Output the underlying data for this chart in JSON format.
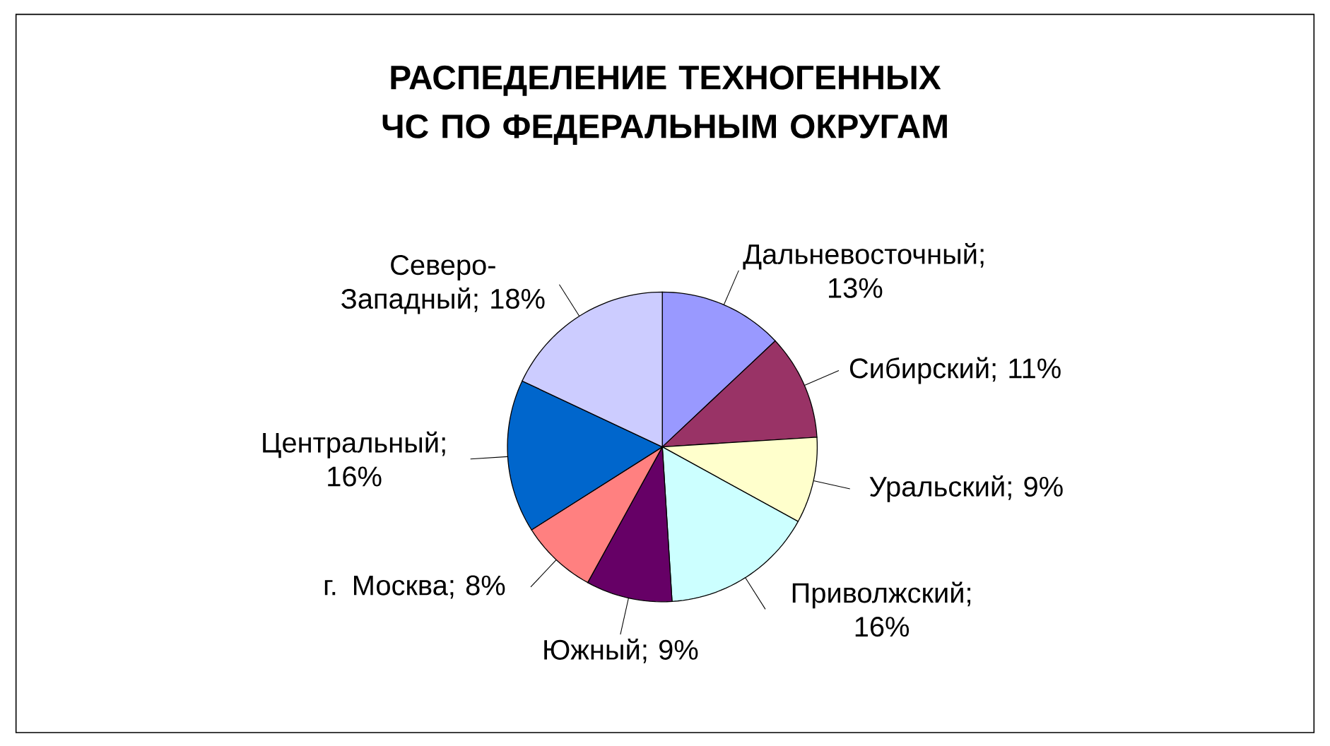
{
  "chart_data": {
    "type": "pie",
    "title": "РАСПЕДЕЛЕНИЕ ТЕХНОГЕННЫХ ЧС ПО ФЕДЕРАЛЬНЫМ ОКРУГАМ",
    "categories": [
      "Дальневосточный",
      "Сибирский",
      "Уральский",
      "Приволжский",
      "Южный",
      "г. Москва",
      "Центральный",
      "Северо-Западный"
    ],
    "values": [
      13,
      11,
      9,
      16,
      9,
      8,
      16,
      18
    ],
    "colors": [
      "#9999ff",
      "#993366",
      "#ffffcc",
      "#ccffff",
      "#660066",
      "#ff8080",
      "#0066cc",
      "#ccccff"
    ],
    "value_labels": [
      "; 13%",
      "; 11%",
      "; 9%",
      "; 16%",
      "; 9%",
      "; 8%",
      "; 16%",
      "; 18%"
    ]
  }
}
